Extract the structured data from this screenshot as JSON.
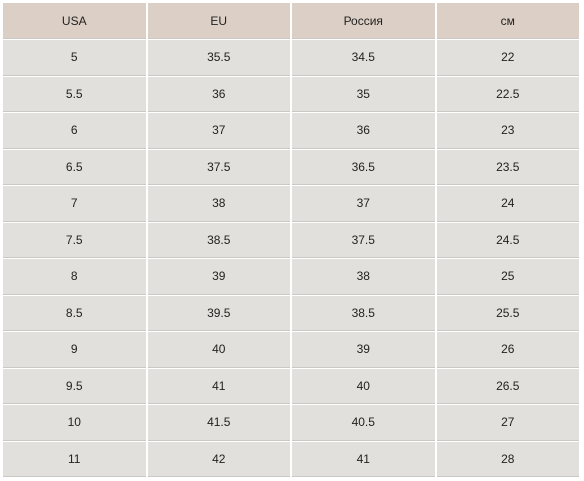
{
  "table": {
    "headers": [
      "USA",
      "EU",
      "Россия",
      "см"
    ],
    "rows": [
      [
        "5",
        "35.5",
        "34.5",
        "22"
      ],
      [
        "5.5",
        "36",
        "35",
        "22.5"
      ],
      [
        "6",
        "37",
        "36",
        "23"
      ],
      [
        "6.5",
        "37.5",
        "36.5",
        "23.5"
      ],
      [
        "7",
        "38",
        "37",
        "24"
      ],
      [
        "7.5",
        "38.5",
        "37.5",
        "24.5"
      ],
      [
        "8",
        "39",
        "38",
        "25"
      ],
      [
        "8.5",
        "39.5",
        "38.5",
        "25.5"
      ],
      [
        "9",
        "40",
        "39",
        "26"
      ],
      [
        "9.5",
        "41",
        "40",
        "26.5"
      ],
      [
        "10",
        "41.5",
        "40.5",
        "27"
      ],
      [
        "11",
        "42",
        "41",
        "28"
      ]
    ]
  }
}
